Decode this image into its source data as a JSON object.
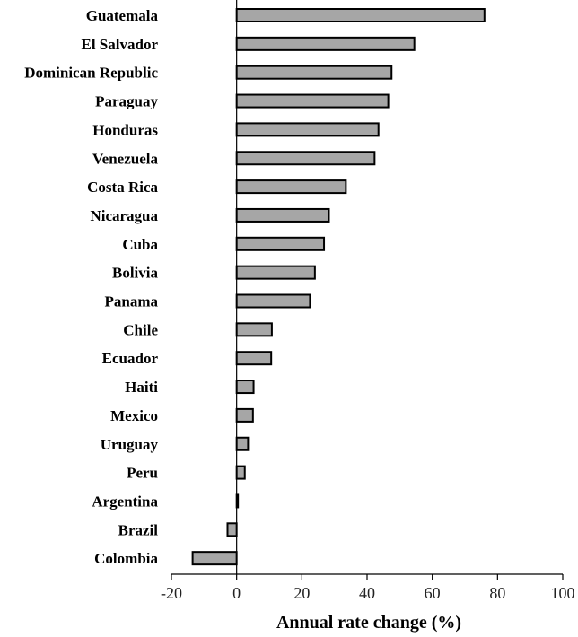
{
  "chart_data": {
    "type": "bar",
    "orientation": "horizontal",
    "categories": [
      "Guatemala",
      "El Salvador",
      "Dominican Republic",
      "Paraguay",
      "Honduras",
      "Venezuela",
      "Costa Rica",
      "Nicaragua",
      "Cuba",
      "Bolivia",
      "Panama",
      "Chile",
      "Ecuador",
      "Haiti",
      "Mexico",
      "Uruguay",
      "Peru",
      "Argentina",
      "Brazil",
      "Colombia"
    ],
    "values": [
      76,
      54.5,
      47.5,
      46.5,
      43.5,
      42.3,
      33.5,
      28.3,
      26.8,
      24,
      22.5,
      10.8,
      10.6,
      5.2,
      5,
      3.5,
      2.5,
      0.3,
      -2.8,
      -13.5
    ],
    "xlabel": "Annual rate change (%)",
    "xlim": [
      -20,
      100
    ],
    "xticks": [
      -20,
      0,
      20,
      40,
      60,
      80,
      100
    ],
    "grid": false,
    "colors": {
      "bar_fill": "#a6a6a6",
      "bar_stroke": "#000000"
    }
  }
}
